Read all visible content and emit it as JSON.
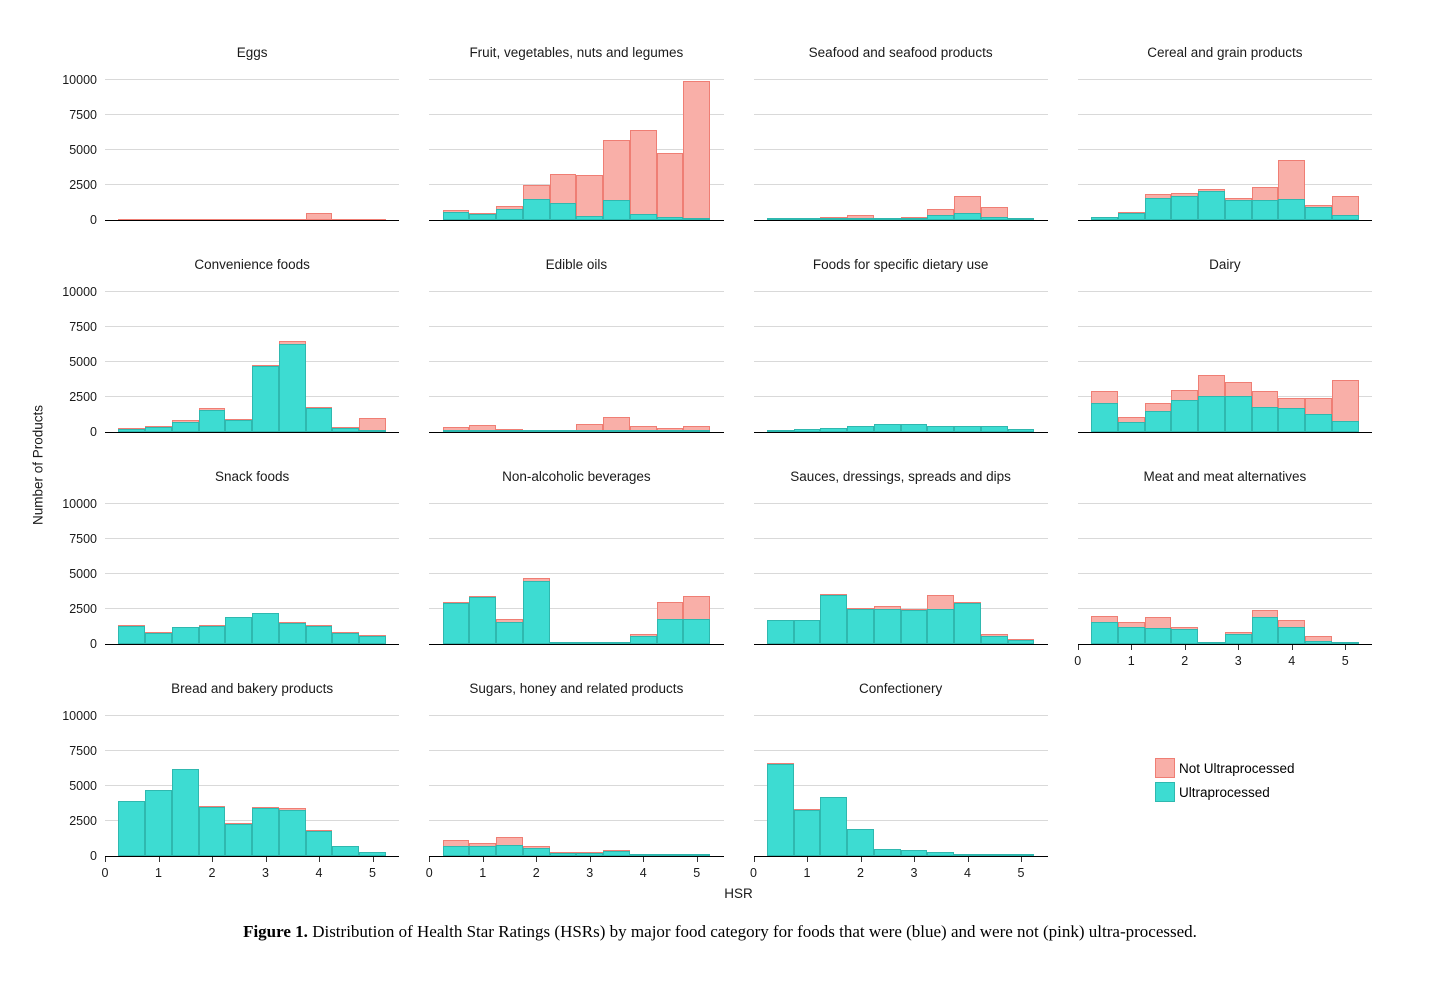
{
  "figure": {
    "y_axis_label": "Number of Products",
    "x_axis_label": "HSR",
    "caption_label": "Figure 1.",
    "caption_text": "Distribution of Health Star Ratings (HSRs) by major food category for foods that were (blue) and were not (pink) ultra-processed."
  },
  "legend": {
    "position": "bottom-right",
    "items": [
      {
        "label": "Not Ultraprocessed",
        "fill": "#F9AFA8",
        "stroke": "#EF7E74"
      },
      {
        "label": "Ultraprocessed",
        "fill": "#3DDCD2",
        "stroke": "#2FB8AF"
      }
    ]
  },
  "chart_data": {
    "type": "bar",
    "subtype": "faceted-overlaid-histograms",
    "x": [
      0.5,
      1,
      1.5,
      2,
      2.5,
      3,
      3.5,
      4,
      4.5,
      5
    ],
    "bin_width": 0.5,
    "xlim": [
      0,
      5.5
    ],
    "ylim": [
      0,
      10500
    ],
    "y_ticks": [
      0,
      2500,
      5000,
      7500,
      10000
    ],
    "x_ticks": [
      0,
      1,
      2,
      3,
      4,
      5
    ],
    "grid": "horizontal-only",
    "series_names": [
      "Not Ultraprocessed",
      "Ultraprocessed"
    ],
    "panels": [
      {
        "title": "Eggs",
        "x_axis": false,
        "not_ultraprocessed": [
          0,
          0,
          0,
          0,
          0,
          0,
          0,
          500,
          0,
          0
        ],
        "ultraprocessed": [
          0,
          0,
          0,
          0,
          0,
          0,
          0,
          0,
          0,
          0
        ]
      },
      {
        "title": "Fruit, vegetables, nuts and legumes",
        "x_axis": false,
        "not_ultraprocessed": [
          700,
          500,
          1000,
          2500,
          3300,
          3200,
          5700,
          6400,
          4800,
          9900
        ],
        "ultraprocessed": [
          600,
          400,
          800,
          1500,
          1200,
          300,
          1400,
          400,
          250,
          150
        ]
      },
      {
        "title": "Seafood and seafood products",
        "x_axis": false,
        "not_ultraprocessed": [
          80,
          80,
          250,
          350,
          150,
          250,
          800,
          1700,
          950,
          80
        ],
        "ultraprocessed": [
          30,
          30,
          80,
          150,
          60,
          120,
          350,
          500,
          250,
          30
        ]
      },
      {
        "title": "Cereal and grain products",
        "x_axis": false,
        "not_ultraprocessed": [
          250,
          600,
          1850,
          1950,
          2250,
          1550,
          2350,
          4300,
          1100,
          1700
        ],
        "ultraprocessed": [
          200,
          500,
          1600,
          1750,
          2050,
          1450,
          1450,
          1500,
          900,
          350
        ]
      },
      {
        "title": "Convenience foods",
        "x_axis": false,
        "not_ultraprocessed": [
          300,
          400,
          850,
          1700,
          950,
          4800,
          6500,
          1800,
          350,
          1000
        ],
        "ultraprocessed": [
          250,
          350,
          750,
          1600,
          850,
          4700,
          6300,
          1750,
          300,
          120
        ]
      },
      {
        "title": "Edible oils",
        "x_axis": false,
        "not_ultraprocessed": [
          350,
          500,
          180,
          80,
          120,
          600,
          1050,
          450,
          280,
          400
        ],
        "ultraprocessed": [
          120,
          120,
          60,
          30,
          40,
          80,
          120,
          100,
          60,
          120
        ]
      },
      {
        "title": "Foods for specific dietary use",
        "x_axis": false,
        "not_ultraprocessed": [
          0,
          0,
          0,
          0,
          0,
          0,
          0,
          0,
          0,
          0
        ],
        "ultraprocessed": [
          120,
          220,
          320,
          420,
          550,
          600,
          420,
          420,
          420,
          250
        ]
      },
      {
        "title": "Dairy",
        "x_axis": false,
        "not_ultraprocessed": [
          2900,
          1100,
          2100,
          3000,
          4100,
          3600,
          2950,
          2400,
          2400,
          3700
        ],
        "ultraprocessed": [
          2100,
          700,
          1500,
          2300,
          2600,
          2600,
          1800,
          1700,
          1300,
          800
        ]
      },
      {
        "title": "Snack foods",
        "x_axis": false,
        "not_ultraprocessed": [
          1350,
          850,
          1250,
          1350,
          1950,
          2250,
          1550,
          1350,
          830,
          620
        ],
        "ultraprocessed": [
          1300,
          800,
          1200,
          1300,
          1900,
          2200,
          1500,
          1300,
          800,
          600
        ]
      },
      {
        "title": "Non-alcoholic beverages",
        "x_axis": false,
        "not_ultraprocessed": [
          3000,
          3450,
          1800,
          4700,
          60,
          60,
          60,
          700,
          3000,
          3400
        ],
        "ultraprocessed": [
          2900,
          3350,
          1600,
          4500,
          30,
          30,
          30,
          600,
          1800,
          1800
        ]
      },
      {
        "title": "Sauces, dressings, spreads and dips",
        "x_axis": false,
        "not_ultraprocessed": [
          1750,
          1750,
          3600,
          2600,
          2700,
          2500,
          3500,
          3000,
          700,
          350
        ],
        "ultraprocessed": [
          1700,
          1700,
          3500,
          2500,
          2500,
          2400,
          2500,
          2900,
          600,
          300
        ]
      },
      {
        "title": "Meat and meat alternatives",
        "x_axis": true,
        "not_ultraprocessed": [
          2000,
          1600,
          1950,
          1250,
          120,
          850,
          2400,
          1700,
          600,
          120
        ],
        "ultraprocessed": [
          1600,
          1250,
          1150,
          1050,
          60,
          700,
          1900,
          1250,
          250,
          60
        ]
      },
      {
        "title": "Bread and bakery products",
        "x_axis": true,
        "not_ultraprocessed": [
          3950,
          4750,
          6250,
          3600,
          2350,
          3500,
          3450,
          1850,
          720,
          320
        ],
        "ultraprocessed": [
          3900,
          4700,
          6200,
          3500,
          2300,
          3400,
          3300,
          1800,
          700,
          300
        ]
      },
      {
        "title": "Sugars, honey and related products",
        "x_axis": true,
        "not_ultraprocessed": [
          1150,
          950,
          1350,
          700,
          300,
          300,
          400,
          120,
          100,
          100
        ],
        "ultraprocessed": [
          700,
          700,
          800,
          600,
          250,
          250,
          350,
          60,
          50,
          50
        ]
      },
      {
        "title": "Confectionery",
        "x_axis": true,
        "not_ultraprocessed": [
          6650,
          3350,
          4250,
          1950,
          520,
          420,
          320,
          160,
          110,
          110
        ],
        "ultraprocessed": [
          6600,
          3300,
          4200,
          1900,
          500,
          400,
          300,
          150,
          100,
          100
        ]
      }
    ]
  }
}
